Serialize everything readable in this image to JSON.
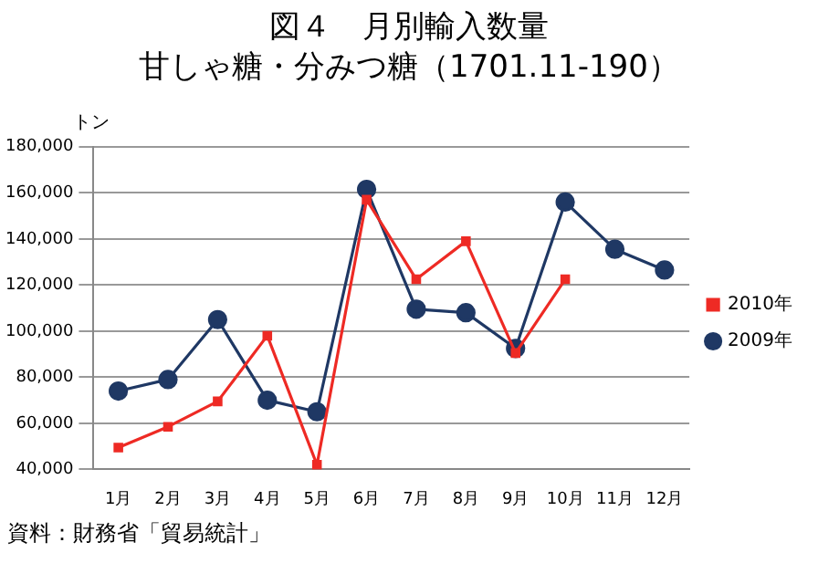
{
  "chart_data": {
    "type": "line",
    "title": "図４　月別輸入数量",
    "subtitle": "甘しゃ糖・分みつ糖（1701.11-190）",
    "ylabel": "トン",
    "categories": [
      "1月",
      "2月",
      "3月",
      "4月",
      "5月",
      "6月",
      "7月",
      "8月",
      "9月",
      "10月",
      "11月",
      "12月"
    ],
    "series": [
      {
        "name": "2010年",
        "color": "#ee2a24",
        "marker": "square",
        "values": [
          49500,
          58500,
          69500,
          98000,
          42000,
          157000,
          122500,
          139000,
          90500,
          122500,
          null,
          null
        ]
      },
      {
        "name": "2009年",
        "color": "#1f3864",
        "marker": "circle",
        "values": [
          74000,
          79000,
          105000,
          70000,
          65000,
          161500,
          109500,
          108000,
          92500,
          156000,
          135500,
          126500
        ]
      }
    ],
    "ylim": [
      40000,
      180000
    ],
    "yticks": [
      {
        "value": 40000,
        "label": "40,000"
      },
      {
        "value": 60000,
        "label": "60,000"
      },
      {
        "value": 80000,
        "label": "80,000"
      },
      {
        "value": 100000,
        "label": "100,000"
      },
      {
        "value": 120000,
        "label": "120,000"
      },
      {
        "value": 140000,
        "label": "140,000"
      },
      {
        "value": 160000,
        "label": "160,000"
      },
      {
        "value": 180000,
        "label": "180,000"
      }
    ],
    "grid": "y",
    "legend": "right",
    "line_style": "solid",
    "annotations": [
      "資料：財務省「貿易統計」"
    ]
  }
}
